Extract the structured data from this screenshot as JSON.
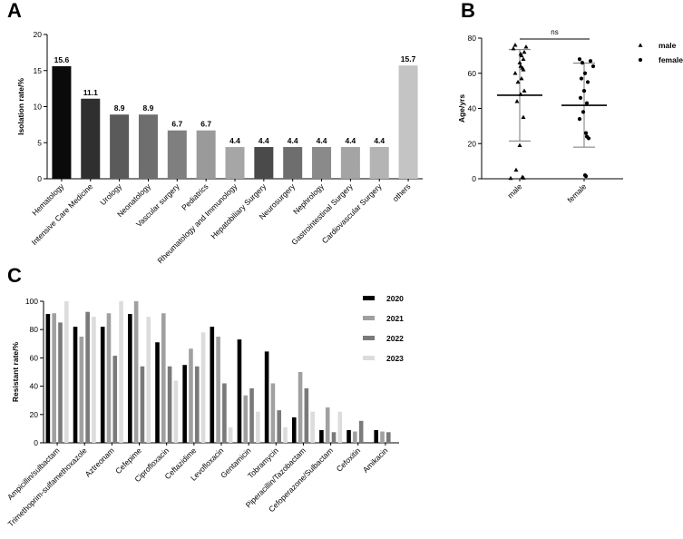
{
  "panels": {
    "a": "A",
    "b": "B",
    "c": "C"
  },
  "chart_data": [
    {
      "type": "bar",
      "panel": "A",
      "ylabel": "Isolation rate/%",
      "ylim": [
        0,
        20
      ],
      "yticks": [
        "0",
        "5",
        "10",
        "15",
        "20"
      ],
      "categories": [
        "Hematology",
        "Intensive Care Medicine",
        "Urology",
        "Neonatology",
        "Vascular surgery",
        "Pediatrics",
        "Rheumatology and Immunology",
        "Hepatobiliary Surgery",
        "Neurosurgery",
        "Nephrology",
        "Gastrointestinal Surgery",
        "Cardiovascular Surgery",
        "others"
      ],
      "values": [
        15.6,
        11.1,
        8.9,
        8.9,
        6.7,
        6.7,
        4.4,
        4.4,
        4.4,
        4.4,
        4.4,
        4.4,
        15.7
      ],
      "labels": [
        "15.6",
        "11.1",
        "8.9",
        "8.9",
        "6.7",
        "6.7",
        "4.4",
        "4.4",
        "4.4",
        "4.4",
        "4.4",
        "4.4",
        "15.7"
      ],
      "colors": [
        "#0a0a0a",
        "#2f2f2f",
        "#5a5a5a",
        "#6e6e6e",
        "#7f7f7f",
        "#9a9a9a",
        "#a6a6a6",
        "#4a4a4a",
        "#6e6e6e",
        "#8a8a8a",
        "#a4a4a4",
        "#b4b4b4",
        "#c4c4c4"
      ]
    },
    {
      "type": "scatter",
      "panel": "B",
      "ylabel": "Age/yrs",
      "ylim": [
        0,
        80
      ],
      "yticks": [
        "0",
        "20",
        "40",
        "60",
        "80"
      ],
      "categories": [
        "male",
        "female"
      ],
      "annotation": "ns",
      "legend": [
        {
          "name": "male",
          "marker": "triangle"
        },
        {
          "name": "female",
          "marker": "circle"
        }
      ],
      "series": [
        {
          "name": "male",
          "mean": 47.5,
          "sd_low": 21.5,
          "sd_high": 73.5,
          "points": [
            76,
            75,
            74,
            72,
            71,
            70,
            68,
            66,
            64,
            63,
            62,
            60,
            57,
            55,
            50,
            48,
            44,
            35,
            19,
            5,
            1,
            0.5,
            0.3
          ]
        },
        {
          "name": "female",
          "mean": 41.8,
          "sd_low": 18,
          "sd_high": 65.8,
          "points": [
            68,
            67,
            66,
            64,
            60,
            57,
            55,
            50,
            46,
            43,
            38,
            34,
            26,
            24,
            23,
            2,
            1.5
          ]
        }
      ]
    },
    {
      "type": "bar",
      "panel": "C",
      "ylabel": "Resistant rate/%",
      "ylim": [
        0,
        100
      ],
      "yticks": [
        "0",
        "20",
        "40",
        "60",
        "80",
        "100"
      ],
      "categories": [
        "Ampicillin/sulbactam",
        "Trimethoprim-sulfamethoxazole",
        "Aztreonam",
        "Cefepime",
        "Ciprofloxacin",
        "Ceftazidime",
        "Levofloxacin",
        "Gentamicin",
        "Tobramycin",
        "Piperacillin/Tazobactam",
        "Cefoperazone/Sulbactam",
        "Cefoxitin",
        "Amikacin"
      ],
      "series": [
        {
          "name": "2020",
          "color": "#000000",
          "values": [
            91,
            82,
            82,
            91,
            71,
            55,
            82,
            73,
            64.5,
            18,
            9,
            9,
            9
          ]
        },
        {
          "name": "2021",
          "color": "#a0a0a0",
          "values": [
            91.5,
            75,
            91.5,
            100,
            91.5,
            66.5,
            75,
            33.5,
            42,
            50,
            25,
            8,
            8
          ]
        },
        {
          "name": "2022",
          "color": "#7a7a7a",
          "values": [
            85,
            92.5,
            61.5,
            54,
            54,
            54,
            42,
            38.5,
            23,
            38.5,
            7.5,
            15.5,
            7.5
          ]
        },
        {
          "name": "2023",
          "color": "#dcdcdc",
          "values": [
            100,
            89,
            100,
            89,
            44,
            78,
            11,
            22,
            11,
            22,
            22,
            0,
            0
          ]
        }
      ]
    }
  ]
}
